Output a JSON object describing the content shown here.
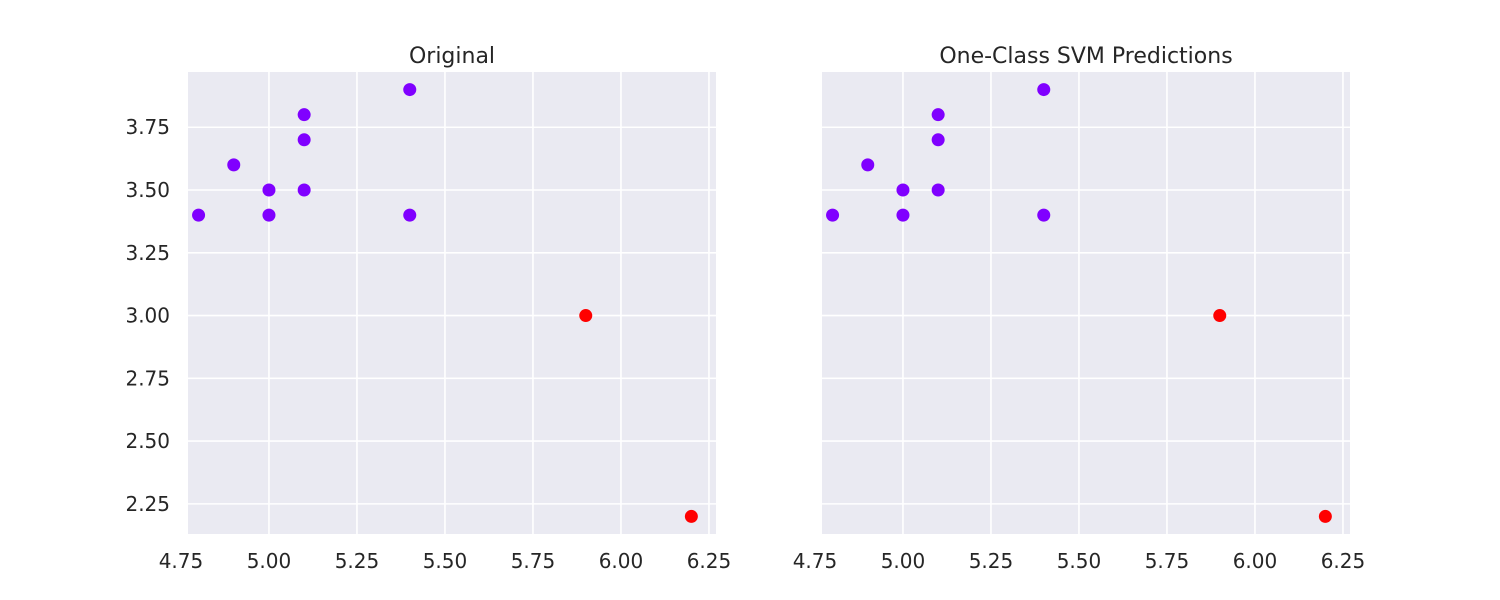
{
  "chart_data": [
    {
      "type": "scatter",
      "title": "Original",
      "xlabel": "",
      "ylabel": "",
      "xlim": [
        4.77,
        6.27
      ],
      "ylim": [
        2.13,
        3.97
      ],
      "x_ticks": [
        "4.75",
        "5.00",
        "5.25",
        "5.50",
        "5.75",
        "6.00",
        "6.25"
      ],
      "y_ticks": [
        "3.75",
        "3.50",
        "3.25",
        "3.00",
        "2.75",
        "2.50",
        "2.25"
      ],
      "show_y_tick_labels": true,
      "grid": true,
      "points": [
        {
          "x": 4.8,
          "y": 3.4,
          "color": "#8000ff"
        },
        {
          "x": 4.9,
          "y": 3.6,
          "color": "#8000ff"
        },
        {
          "x": 5.0,
          "y": 3.5,
          "color": "#8000ff"
        },
        {
          "x": 5.0,
          "y": 3.4,
          "color": "#8000ff"
        },
        {
          "x": 5.1,
          "y": 3.8,
          "color": "#8000ff"
        },
        {
          "x": 5.1,
          "y": 3.7,
          "color": "#8000ff"
        },
        {
          "x": 5.1,
          "y": 3.5,
          "color": "#8000ff"
        },
        {
          "x": 5.4,
          "y": 3.9,
          "color": "#8000ff"
        },
        {
          "x": 5.4,
          "y": 3.4,
          "color": "#8000ff"
        },
        {
          "x": 5.9,
          "y": 3.0,
          "color": "#ff0000"
        },
        {
          "x": 6.2,
          "y": 2.2,
          "color": "#ff0000"
        }
      ]
    },
    {
      "type": "scatter",
      "title": "One-Class SVM Predictions",
      "xlabel": "",
      "ylabel": "",
      "xlim": [
        4.77,
        6.27
      ],
      "ylim": [
        2.13,
        3.97
      ],
      "x_ticks": [
        "4.75",
        "5.00",
        "5.25",
        "5.50",
        "5.75",
        "6.00",
        "6.25"
      ],
      "y_ticks": [
        "3.75",
        "3.50",
        "3.25",
        "3.00",
        "2.75",
        "2.50",
        "2.25"
      ],
      "show_y_tick_labels": false,
      "grid": true,
      "points": [
        {
          "x": 4.8,
          "y": 3.4,
          "color": "#8000ff"
        },
        {
          "x": 4.9,
          "y": 3.6,
          "color": "#8000ff"
        },
        {
          "x": 5.0,
          "y": 3.5,
          "color": "#8000ff"
        },
        {
          "x": 5.0,
          "y": 3.4,
          "color": "#8000ff"
        },
        {
          "x": 5.1,
          "y": 3.8,
          "color": "#8000ff"
        },
        {
          "x": 5.1,
          "y": 3.7,
          "color": "#8000ff"
        },
        {
          "x": 5.1,
          "y": 3.5,
          "color": "#8000ff"
        },
        {
          "x": 5.4,
          "y": 3.9,
          "color": "#8000ff"
        },
        {
          "x": 5.4,
          "y": 3.4,
          "color": "#8000ff"
        },
        {
          "x": 5.9,
          "y": 3.0,
          "color": "#ff0000"
        },
        {
          "x": 6.2,
          "y": 2.2,
          "color": "#ff0000"
        }
      ]
    }
  ]
}
